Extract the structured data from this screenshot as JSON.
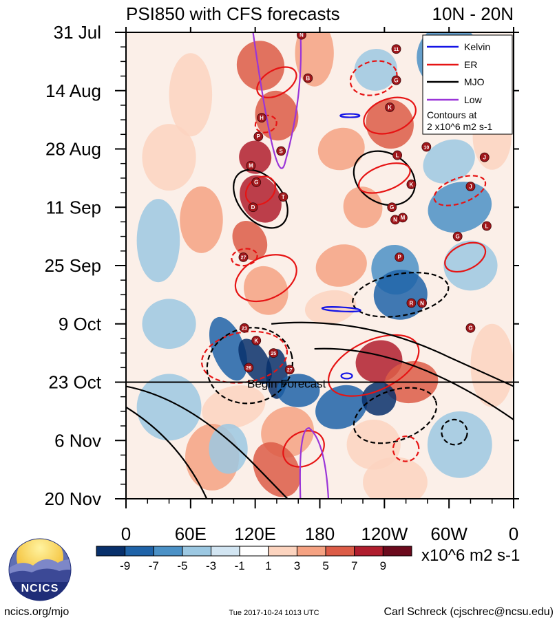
{
  "chart_data": {
    "type": "heatmap",
    "title_left": "PSI850 with CFS forecasts",
    "title_right": "10N - 20N",
    "x_ticks": [
      "0",
      "60E",
      "120E",
      "180",
      "120W",
      "60W",
      "0"
    ],
    "x_values": [
      0,
      60,
      120,
      180,
      240,
      300,
      360
    ],
    "y_ticks": [
      "31 Jul",
      "14 Aug",
      "28 Aug",
      "11 Sep",
      "25 Sep",
      "9 Oct",
      "23 Oct",
      "6 Nov",
      "20 Nov"
    ],
    "y_days": [
      0,
      14,
      28,
      42,
      56,
      70,
      84,
      98,
      112
    ],
    "begin_forecast_day": 84,
    "begin_forecast_label": "Begin Forecast",
    "legend": {
      "items": [
        {
          "label": "Kelvin",
          "color": "#1414e6"
        },
        {
          "label": "ER",
          "color": "#e61414"
        },
        {
          "label": "MJO",
          "color": "#000000"
        },
        {
          "label": "Low",
          "color": "#9a35d8"
        }
      ],
      "note_line1": "Contours at",
      "note_line2": "2 x10^6 m2 s-1"
    },
    "colorbar": {
      "colors": [
        "#08306b",
        "#1f63a8",
        "#4b91c6",
        "#9cc8e2",
        "#d2e5f2",
        "#ffffff",
        "#fcd4bf",
        "#f5a282",
        "#dc5c47",
        "#b01e2e",
        "#6b0a1d"
      ],
      "labels": [
        "-9",
        "-7",
        "-5",
        "-3",
        "-1",
        "1",
        "3",
        "5",
        "7",
        "9"
      ],
      "units": "x10^6 m2 s-1"
    },
    "storms": [
      {
        "label": "N",
        "lon": 163,
        "day": 0.6
      },
      {
        "label": "11",
        "lon": 251,
        "day": 4
      },
      {
        "label": "B",
        "lon": 169,
        "day": 11
      },
      {
        "label": "G",
        "lon": 251,
        "day": 11.5
      },
      {
        "label": "K",
        "lon": 245,
        "day": 18
      },
      {
        "label": "H",
        "lon": 126,
        "day": 20.5
      },
      {
        "label": "P",
        "lon": 123,
        "day": 25
      },
      {
        "label": "S",
        "lon": 144,
        "day": 28.5
      },
      {
        "label": "10",
        "lon": 279,
        "day": 27.5
      },
      {
        "label": "L",
        "lon": 252,
        "day": 29.5
      },
      {
        "label": "J",
        "lon": 333,
        "day": 30
      },
      {
        "label": "M",
        "lon": 116,
        "day": 32
      },
      {
        "label": "G",
        "lon": 121,
        "day": 36
      },
      {
        "label": "K",
        "lon": 265,
        "day": 36.5
      },
      {
        "label": "J",
        "lon": 320,
        "day": 37
      },
      {
        "label": "T",
        "lon": 146,
        "day": 39.5
      },
      {
        "label": "D",
        "lon": 118,
        "day": 42
      },
      {
        "label": "G",
        "lon": 247,
        "day": 42
      },
      {
        "label": "N",
        "lon": 250,
        "day": 45
      },
      {
        "label": "M",
        "lon": 257,
        "day": 44.5
      },
      {
        "label": "G",
        "lon": 308,
        "day": 49
      },
      {
        "label": "L",
        "lon": 335,
        "day": 46.5
      },
      {
        "label": "27",
        "lon": 109,
        "day": 54
      },
      {
        "label": "P",
        "lon": 254,
        "day": 54
      },
      {
        "label": "R",
        "lon": 265,
        "day": 65
      },
      {
        "label": "N",
        "lon": 275,
        "day": 65
      },
      {
        "label": "G",
        "lon": 320,
        "day": 71
      },
      {
        "label": "23",
        "lon": 110,
        "day": 71
      },
      {
        "label": "K",
        "lon": 121,
        "day": 74
      },
      {
        "label": "25",
        "lon": 137,
        "day": 77
      },
      {
        "label": "26",
        "lon": 114,
        "day": 80.5
      },
      {
        "label": "27",
        "lon": 152,
        "day": 81
      }
    ]
  },
  "footer": {
    "logo_text": "NCICS",
    "left": "ncics.org/mjo",
    "center": "Tue 2017-10-24 1013 UTC",
    "right": "Carl Schreck (cjschrec@ncsu.edu)"
  }
}
